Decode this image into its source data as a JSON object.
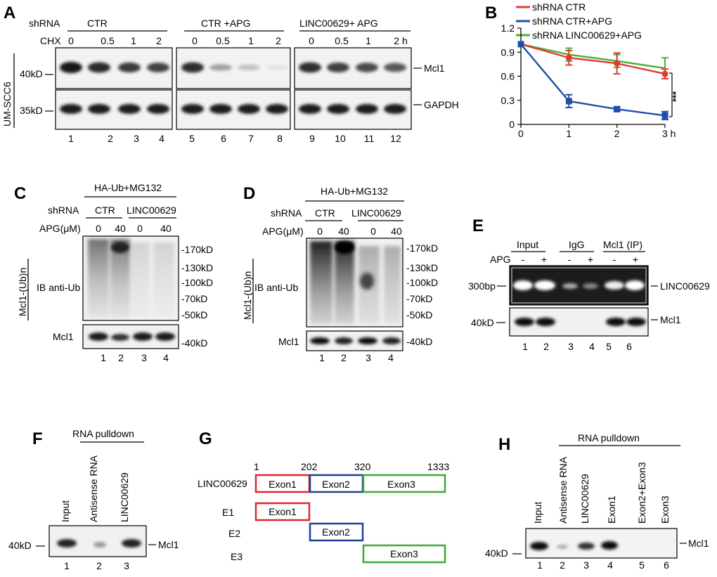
{
  "A": {
    "letter": "A",
    "shrna": "shRNA",
    "chx": "CHX",
    "groups": [
      "CTR",
      "CTR +APG",
      "LINC00629+ APG"
    ],
    "times": [
      "0",
      "0.5",
      "1",
      "2",
      "0",
      "0.5",
      "1",
      "2",
      "0",
      "0.5",
      "1",
      "2 h"
    ],
    "cell_line": "UM-SCC6",
    "mw": [
      "40kD",
      "35kD"
    ],
    "bands": [
      "Mcl1",
      "GAPDH"
    ],
    "lanes": [
      "1",
      "2",
      "3",
      "4",
      "5",
      "6",
      "7",
      "8",
      "9",
      "10",
      "11",
      "12"
    ],
    "mcl1_intensity": [
      1,
      0.9,
      0.82,
      0.78,
      0.88,
      0.35,
      0.2,
      0.05,
      0.88,
      0.8,
      0.74,
      0.68
    ]
  },
  "B": {
    "letter": "B",
    "significance": "***"
  },
  "chart_data": {
    "type": "line",
    "x": [
      0,
      1,
      2,
      3
    ],
    "xticks": [
      "0",
      "1",
      "2",
      "3 h"
    ],
    "yticks": [
      "0",
      "0.3",
      "0.6",
      "0.9",
      "1.2"
    ],
    "ylim": [
      0,
      1.2
    ],
    "xlim": [
      0,
      3
    ],
    "series": [
      {
        "name": "shRNA CTR",
        "color": "#e03c31",
        "marker": "circle",
        "values": [
          1.0,
          0.83,
          0.76,
          0.63
        ],
        "err": [
          0,
          0.09,
          0.13,
          0.06
        ]
      },
      {
        "name": "shRNA CTR+APG",
        "color": "#1f4fa8",
        "marker": "square",
        "values": [
          1.0,
          0.29,
          0.19,
          0.11
        ],
        "err": [
          0,
          0.08,
          0.03,
          0.05
        ]
      },
      {
        "name": "shRNA LINC00629+APG",
        "color": "#4caf3c",
        "marker": "none",
        "values": [
          1.0,
          0.87,
          0.79,
          0.7
        ],
        "err": [
          0,
          0.08,
          0.08,
          0.13
        ]
      }
    ]
  },
  "C": {
    "letter": "C",
    "treatment": "HA-Ub+MG132",
    "shrna": "shRNA",
    "groups": [
      "CTR",
      "LINC00629"
    ],
    "apg_label": "APG(μM)",
    "apg": [
      "0",
      "40",
      "0",
      "40"
    ],
    "ub_label": "Mcl1-(Ub)n",
    "ib_label": "IB anti-Ub",
    "mcl1": "Mcl1",
    "mw": [
      "-170kD",
      "-130kD",
      "-100kD",
      "-70kD",
      "-50kD",
      "-40kD"
    ],
    "lanes": [
      "1",
      "2",
      "3",
      "4"
    ]
  },
  "D": {
    "letter": "D",
    "treatment": "HA-Ub+MG132",
    "shrna": "shRNA",
    "groups": [
      "CTR",
      "LINC00629"
    ],
    "apg_label": "APG(μM)",
    "apg": [
      "0",
      "40",
      "0",
      "40"
    ],
    "ub_label": "Mcl1-(Ub)n",
    "ib_label": "IB anti-Ub",
    "mcl1": "Mcl1",
    "mw": [
      "-170kD",
      "-130kD",
      "-100kD",
      "-70kD",
      "-50kD",
      "-40kD"
    ],
    "lanes": [
      "1",
      "2",
      "3",
      "4"
    ]
  },
  "E": {
    "letter": "E",
    "groups": [
      "Input",
      "IgG",
      "Mcl1 (IP)"
    ],
    "apg_label": "APG",
    "signs": [
      "-",
      "+",
      "-",
      "+",
      "-",
      "+"
    ],
    "mw": [
      "300bp",
      "40kD"
    ],
    "bands": [
      "LINC00629",
      "Mcl1"
    ],
    "lanes": [
      "1",
      "2",
      "3",
      "4",
      "5",
      "6"
    ]
  },
  "F": {
    "letter": "F",
    "header": "RNA pulldown",
    "cols": [
      "Input",
      "Antisense RNA",
      "LINC00629"
    ],
    "mw": "40kD",
    "band": "Mcl1",
    "lanes": [
      "1",
      "2",
      "3"
    ]
  },
  "G": {
    "letter": "G",
    "positions": [
      "1",
      "202",
      "320",
      "1333"
    ],
    "gene": "LINC00629",
    "exons": [
      "Exon1",
      "Exon2",
      "Exon3"
    ],
    "constructs": [
      "E1",
      "E2",
      "E3"
    ],
    "colors": {
      "exon1": "#e0262b",
      "exon2": "#1f3f9a",
      "exon3": "#3aaa35"
    }
  },
  "H": {
    "letter": "H",
    "header": "RNA pulldown",
    "cols": [
      "Input",
      "Antisense RNA",
      "LINC00629",
      "Exon1",
      "Exon2+Exon3",
      "Exon3"
    ],
    "mw": "40kD",
    "band": "Mcl1",
    "lanes": [
      "1",
      "2",
      "3",
      "4",
      "5",
      "6"
    ]
  }
}
